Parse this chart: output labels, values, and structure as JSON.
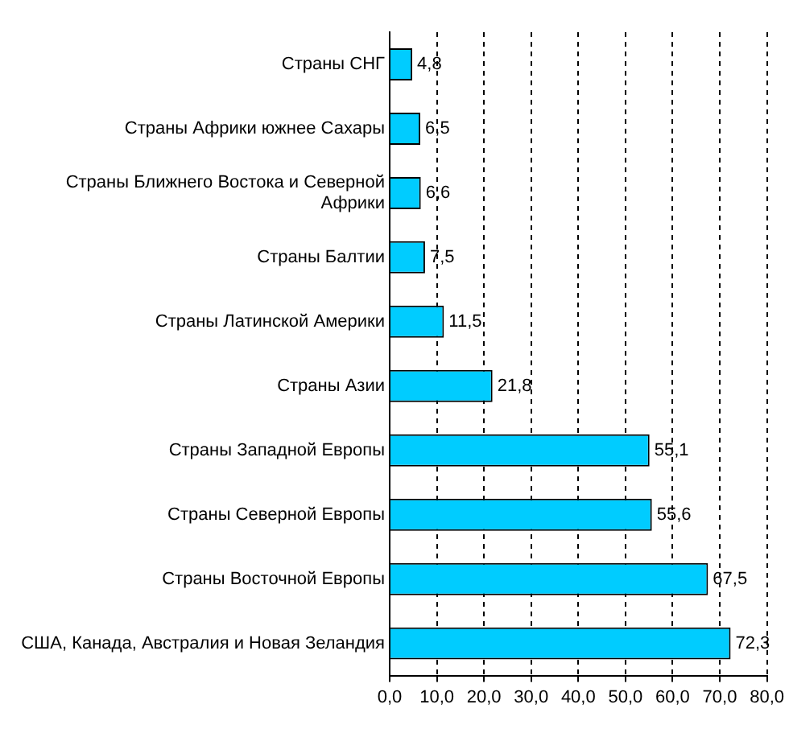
{
  "chart_data": {
    "type": "bar",
    "orientation": "horizontal",
    "categories": [
      "Страны СНГ",
      "Страны Африки южнее Сахары",
      "Страны Ближнего Востока и Северной Африки",
      "Страны Балтии",
      "Страны Латинской Америки",
      "Страны Азии",
      "Страны Западной Европы",
      "Страны Северной Европы",
      "Страны Восточной Европы",
      "США, Канада, Австралия и Новая Зеландия"
    ],
    "values": [
      4.8,
      6.5,
      6.6,
      7.5,
      11.5,
      21.8,
      55.1,
      55.6,
      67.5,
      72.3
    ],
    "value_labels": [
      "4,8",
      "6,5",
      "6,6",
      "7,5",
      "11,5",
      "21,8",
      "55,1",
      "55,6",
      "67,5",
      "72,3"
    ],
    "color": "#00ccff",
    "xlim": [
      0,
      80
    ],
    "xticks": [
      {
        "value": 0,
        "label": "0,0"
      },
      {
        "value": 10,
        "label": "10,0"
      },
      {
        "value": 20,
        "label": "20,0"
      },
      {
        "value": 30,
        "label": "30,0"
      },
      {
        "value": 40,
        "label": "40,0"
      },
      {
        "value": 50,
        "label": "50,0"
      },
      {
        "value": 60,
        "label": "60,0"
      },
      {
        "value": 70,
        "label": "70,0"
      },
      {
        "value": 80,
        "label": "80,0"
      }
    ],
    "grid": "x",
    "legend": false
  }
}
